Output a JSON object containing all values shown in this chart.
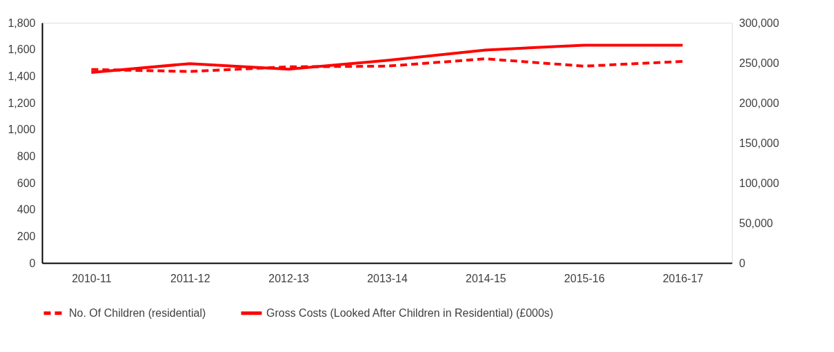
{
  "chart_data": {
    "type": "line",
    "categories": [
      "2010-11",
      "2011-12",
      "2012-13",
      "2013-14",
      "2014-15",
      "2015-16",
      "2016-17"
    ],
    "series": [
      {
        "name": "No. Of Children (residential)",
        "color": "#ff0000",
        "line_style": "dashed",
        "values": [
          1450,
          1435,
          1470,
          1475,
          1530,
          1475,
          1510
        ]
      },
      {
        "name": "Gross Costs (Looked After Children in Residential) (£000s)",
        "color": "#ff0000",
        "line_style": "solid",
        "axis": "y2",
        "values": [
          238000,
          249000,
          242000,
          253000,
          266000,
          272000,
          272000
        ]
      }
    ],
    "ylim": [
      0,
      1800
    ],
    "yticks": [
      0,
      200,
      400,
      600,
      800,
      {
        "value": 1000,
        "label": "1,000"
      },
      {
        "value": 1200,
        "label": "1,200"
      },
      {
        "value": 1400,
        "label": "1,400"
      },
      {
        "value": 1600,
        "label": "1,600"
      },
      {
        "value": 1800,
        "label": "1,800"
      }
    ],
    "y2lim": [
      0,
      300000
    ],
    "y2ticks": [
      0,
      {
        "value": 50000,
        "label": "50,000"
      },
      {
        "value": 100000,
        "label": "100,000"
      },
      {
        "value": 150000,
        "label": "150,000"
      },
      {
        "value": 200000,
        "label": "200,000"
      },
      {
        "value": 250000,
        "label": "250,000"
      },
      {
        "value": 300000,
        "label": "300,000"
      }
    ],
    "grid": false,
    "legend": "bottom",
    "marker": "none"
  }
}
